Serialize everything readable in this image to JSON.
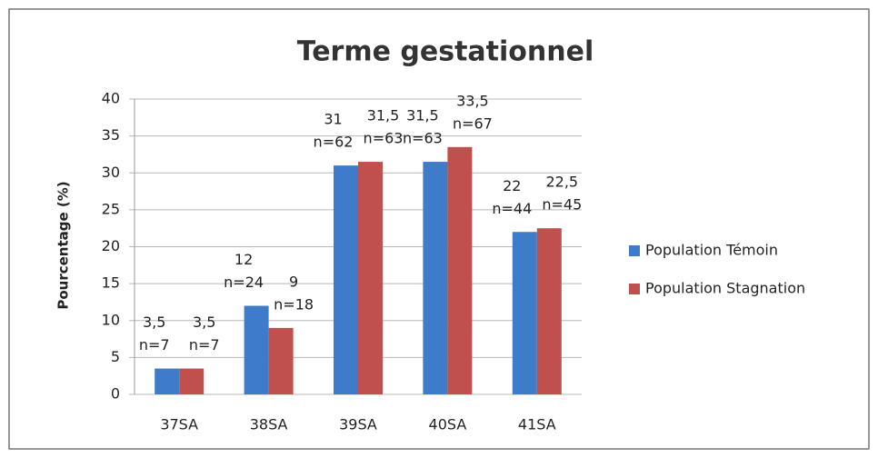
{
  "chart_data": {
    "type": "bar",
    "title": "Terme gestationnel",
    "ylabel": "Pourcentage (%)",
    "categories": [
      "37SA",
      "38SA",
      "39SA",
      "40SA",
      "41SA"
    ],
    "series": [
      {
        "name": "Population Témoin",
        "color": "#3e7cc9",
        "values": [
          3.5,
          12,
          31,
          31.5,
          22
        ],
        "value_labels": [
          "3,5",
          "12",
          "31",
          "31,5",
          "22"
        ],
        "count_labels": [
          "n=7",
          "n=24",
          "n=62",
          "n=63",
          "n=44"
        ]
      },
      {
        "name": "Population Stagnation",
        "color": "#c0504d",
        "values": [
          3.5,
          9,
          31.5,
          33.5,
          22.5
        ],
        "value_labels": [
          "3,5",
          "9",
          "31,5",
          "33,5",
          "22,5"
        ],
        "count_labels": [
          "n=7",
          "n=18",
          "n=63",
          "n=67",
          "n=45"
        ]
      }
    ],
    "ylim": [
      0,
      40
    ],
    "yticks": [
      0,
      5,
      10,
      15,
      20,
      25,
      30,
      35,
      40
    ],
    "grid": true,
    "legend": "right"
  }
}
